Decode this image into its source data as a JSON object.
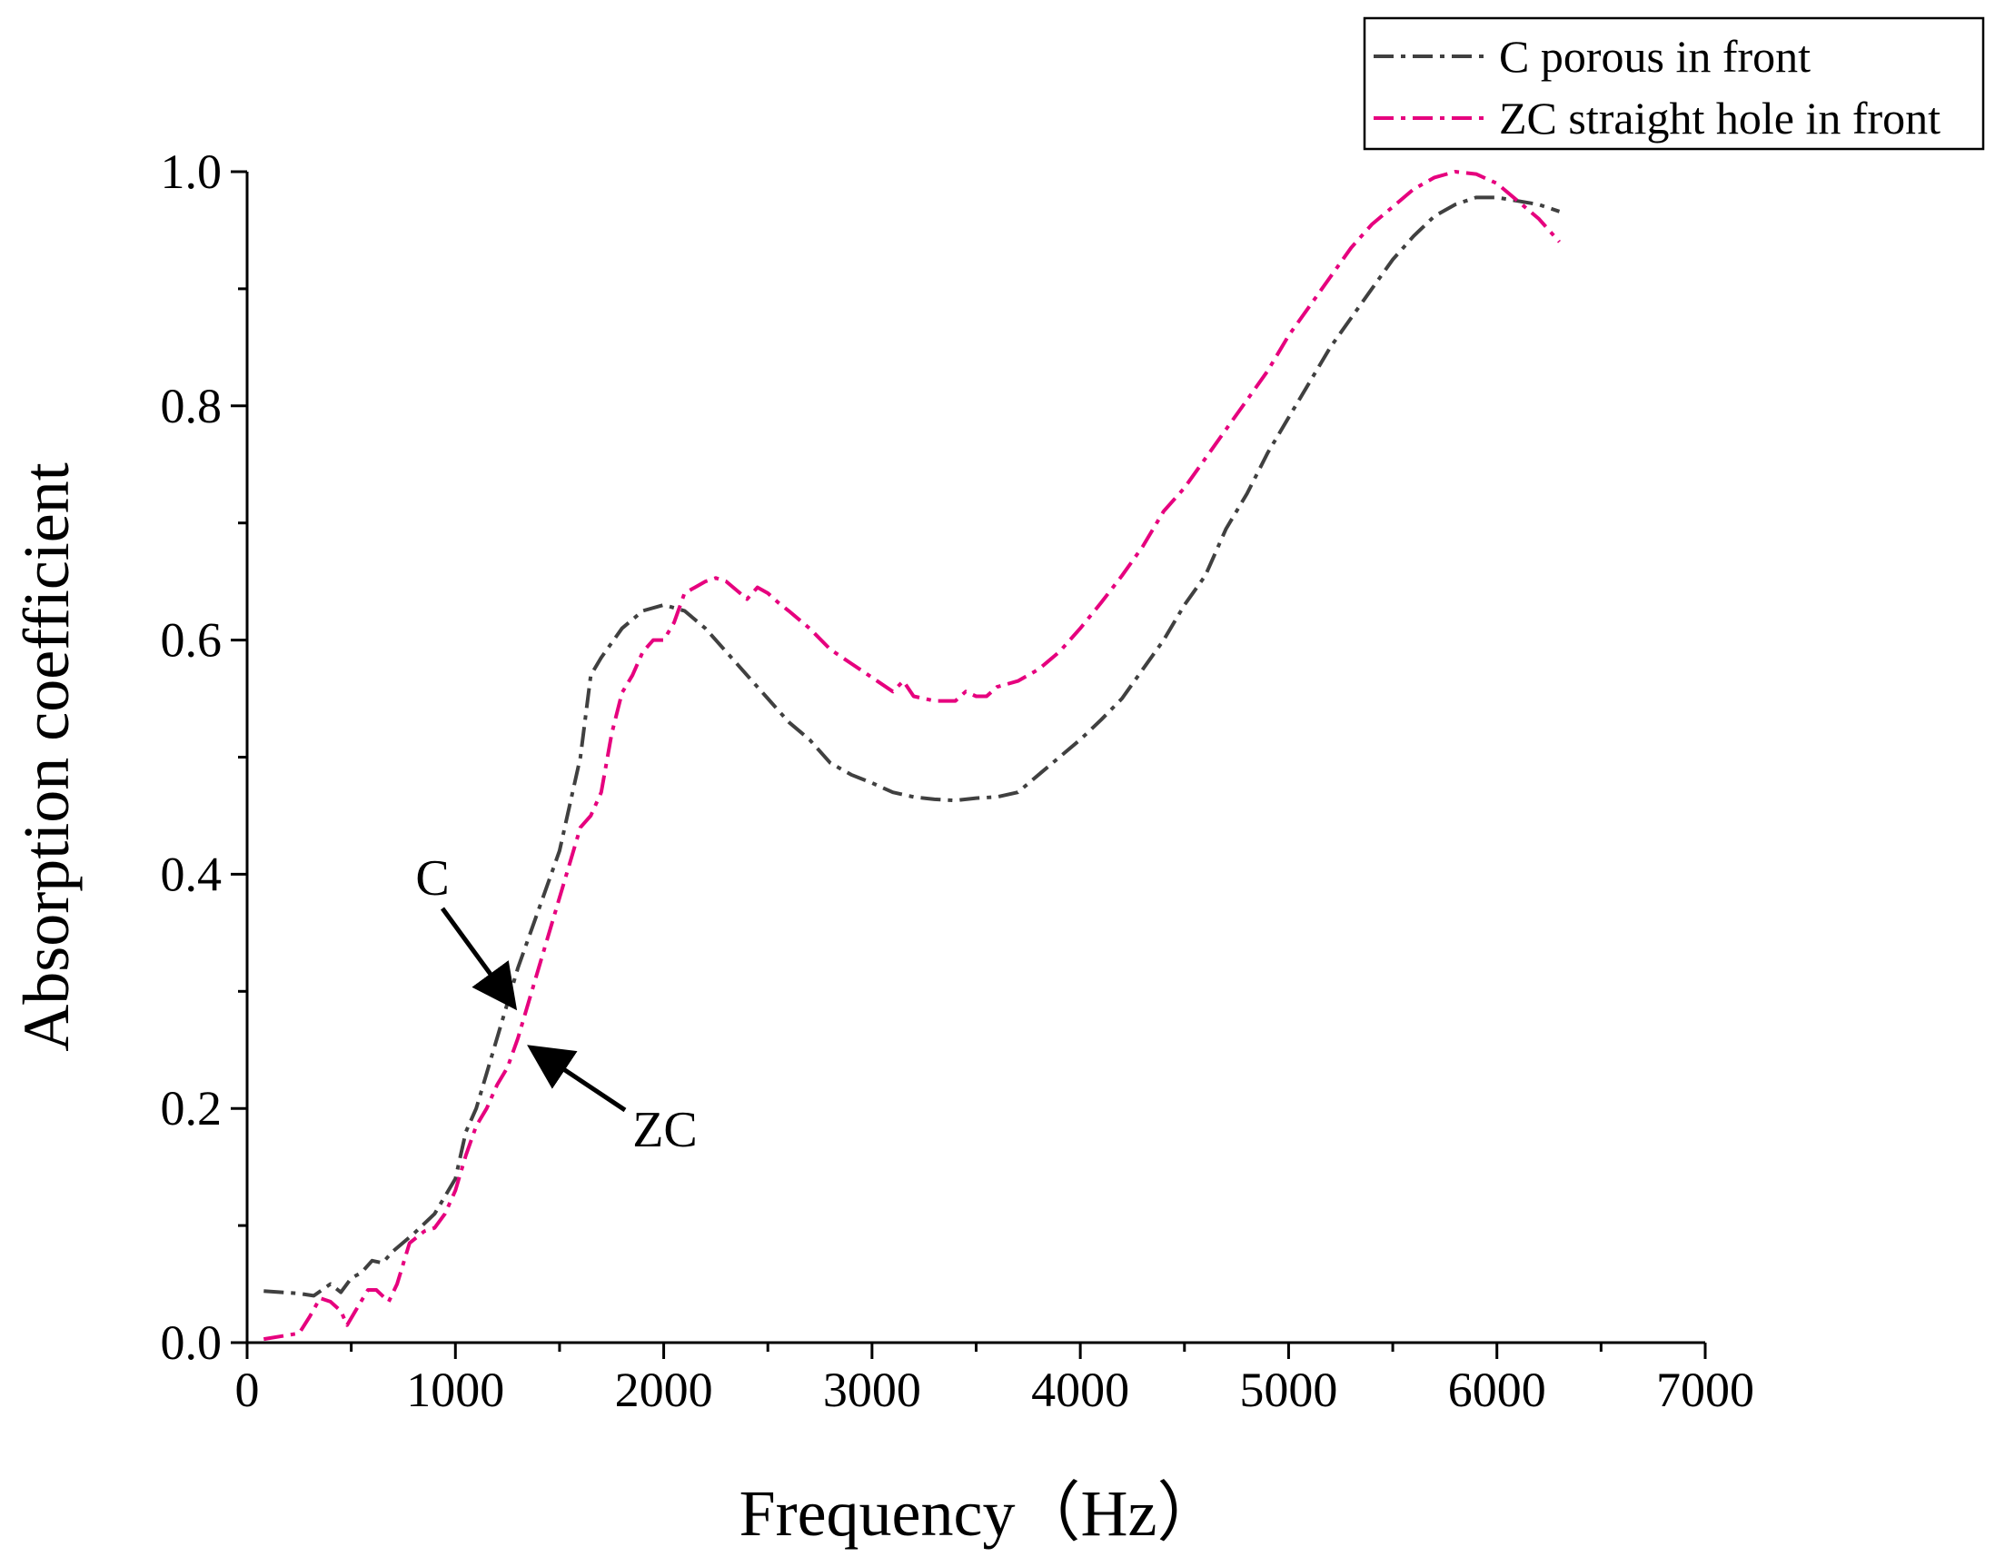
{
  "chart_data": {
    "type": "line",
    "title": "",
    "xlabel": "Frequency（Hz）",
    "ylabel": "Absorption coefficient",
    "xlim": [
      0,
      7000
    ],
    "ylim": [
      0,
      1.0
    ],
    "xticks": [
      0,
      1000,
      2000,
      3000,
      4000,
      5000,
      6000,
      7000
    ],
    "xtick_labels": [
      "0",
      "1000",
      "2000",
      "3000",
      "4000",
      "5000",
      "6000",
      "7000"
    ],
    "yticks": [
      0.0,
      0.2,
      0.4,
      0.6,
      0.8,
      1.0
    ],
    "ytick_labels": [
      "0.0",
      "0.2",
      "0.4",
      "0.6",
      "0.8",
      "1.0"
    ],
    "grid": false,
    "legend_position": "top-right",
    "series": [
      {
        "name": "C porous in front",
        "color": "#404040",
        "dash": "dashdot",
        "x": [
          80,
          250,
          320,
          400,
          450,
          500,
          550,
          600,
          650,
          700,
          800,
          900,
          1000,
          1050,
          1100,
          1150,
          1200,
          1250,
          1300,
          1400,
          1500,
          1600,
          1650,
          1700,
          1800,
          1900,
          2000,
          2100,
          2200,
          2300,
          2400,
          2500,
          2600,
          2700,
          2800,
          2900,
          3000,
          3100,
          3200,
          3300,
          3400,
          3500,
          3600,
          3700,
          3800,
          3900,
          4000,
          4100,
          4200,
          4300,
          4400,
          4500,
          4600,
          4700,
          4800,
          4900,
          5000,
          5100,
          5200,
          5300,
          5400,
          5500,
          5600,
          5700,
          5800,
          5900,
          6000,
          6100,
          6200,
          6300
        ],
        "y": [
          0.044,
          0.042,
          0.04,
          0.05,
          0.043,
          0.055,
          0.06,
          0.07,
          0.068,
          0.078,
          0.093,
          0.11,
          0.14,
          0.18,
          0.2,
          0.23,
          0.26,
          0.29,
          0.32,
          0.37,
          0.42,
          0.5,
          0.57,
          0.585,
          0.61,
          0.625,
          0.63,
          0.625,
          0.61,
          0.59,
          0.57,
          0.55,
          0.53,
          0.515,
          0.495,
          0.485,
          0.478,
          0.47,
          0.466,
          0.464,
          0.463,
          0.465,
          0.466,
          0.47,
          0.485,
          0.5,
          0.515,
          0.532,
          0.55,
          0.575,
          0.6,
          0.63,
          0.655,
          0.695,
          0.725,
          0.76,
          0.79,
          0.82,
          0.85,
          0.875,
          0.9,
          0.925,
          0.945,
          0.962,
          0.972,
          0.978,
          0.978,
          0.975,
          0.972,
          0.966
        ]
      },
      {
        "name": "ZC straight hole in front",
        "color": "#e6007e",
        "dash": "dashdot",
        "x": [
          80,
          250,
          300,
          350,
          400,
          450,
          480,
          520,
          580,
          620,
          680,
          720,
          780,
          850,
          900,
          950,
          1000,
          1050,
          1100,
          1150,
          1200,
          1250,
          1300,
          1400,
          1500,
          1600,
          1650,
          1700,
          1750,
          1800,
          1850,
          1900,
          1950,
          2000,
          2050,
          2100,
          2150,
          2200,
          2250,
          2300,
          2400,
          2450,
          2500,
          2550,
          2600,
          2700,
          2800,
          2900,
          3000,
          3100,
          3150,
          3200,
          3250,
          3300,
          3400,
          3450,
          3500,
          3550,
          3600,
          3700,
          3800,
          3900,
          4000,
          4100,
          4200,
          4300,
          4400,
          4500,
          4600,
          4700,
          4800,
          4900,
          5000,
          5100,
          5200,
          5300,
          5400,
          5500,
          5600,
          5700,
          5800,
          5900,
          6000,
          6100,
          6200,
          6300
        ],
        "y": [
          0.003,
          0.008,
          0.022,
          0.038,
          0.035,
          0.027,
          0.015,
          0.027,
          0.045,
          0.045,
          0.035,
          0.05,
          0.085,
          0.095,
          0.098,
          0.11,
          0.13,
          0.16,
          0.185,
          0.2,
          0.22,
          0.235,
          0.26,
          0.32,
          0.38,
          0.44,
          0.45,
          0.47,
          0.52,
          0.555,
          0.57,
          0.59,
          0.6,
          0.6,
          0.615,
          0.64,
          0.645,
          0.65,
          0.653,
          0.65,
          0.635,
          0.645,
          0.64,
          0.632,
          0.625,
          0.61,
          0.592,
          0.58,
          0.568,
          0.556,
          0.565,
          0.552,
          0.55,
          0.548,
          0.548,
          0.556,
          0.552,
          0.552,
          0.56,
          0.565,
          0.575,
          0.59,
          0.61,
          0.632,
          0.655,
          0.68,
          0.71,
          0.73,
          0.755,
          0.78,
          0.805,
          0.83,
          0.86,
          0.885,
          0.91,
          0.935,
          0.955,
          0.97,
          0.985,
          0.995,
          1.0,
          0.998,
          0.99,
          0.975,
          0.96,
          0.94
        ]
      }
    ],
    "annotations": [
      {
        "text": "C",
        "points_to": [
          1270,
          0.29
        ]
      },
      {
        "text": "ZC",
        "points_to": [
          1380,
          0.25
        ]
      }
    ]
  }
}
